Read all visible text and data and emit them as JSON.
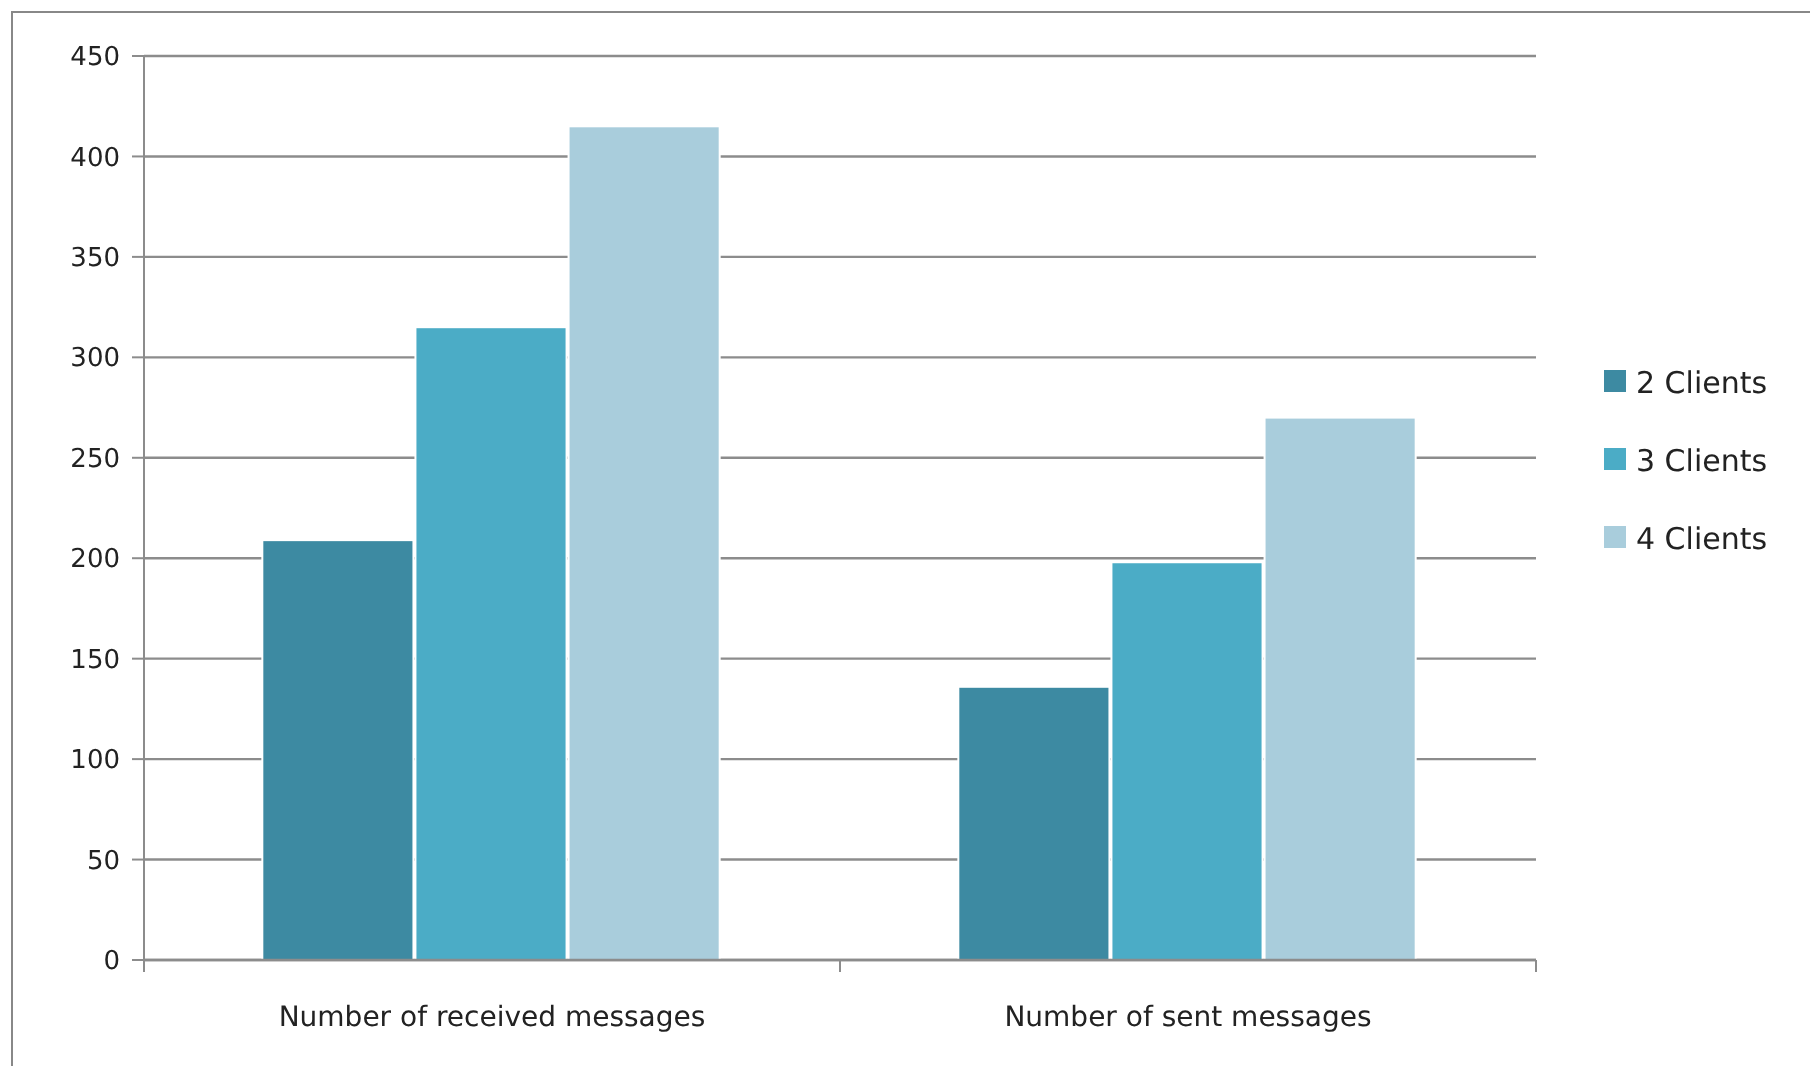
{
  "chart_data": {
    "type": "bar",
    "categories": [
      "Number of received messages",
      "Number of sent messages"
    ],
    "series": [
      {
        "name": "2 Clients",
        "color": "#3d8aa2",
        "values": [
          209,
          136
        ]
      },
      {
        "name": "3 Clients",
        "color": "#4bacc6",
        "values": [
          315,
          198
        ]
      },
      {
        "name": "4 Clients",
        "color": "#a9cddc",
        "values": [
          415,
          270
        ]
      }
    ],
    "ylim": [
      0,
      450
    ],
    "yticks": [
      0,
      50,
      100,
      150,
      200,
      250,
      300,
      350,
      400,
      450
    ],
    "grid": "y",
    "legend": "right"
  }
}
